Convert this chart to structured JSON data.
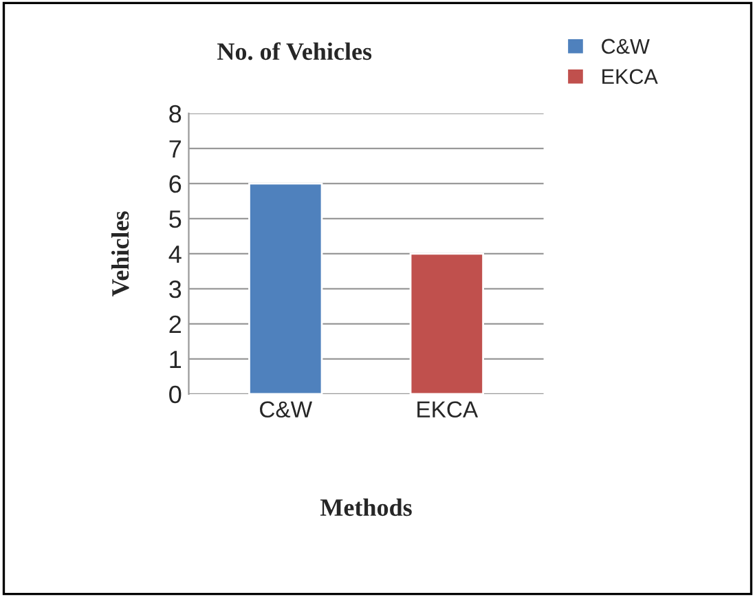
{
  "chart_data": {
    "type": "bar",
    "title": "No. of Vehicles",
    "xlabel": "Methods",
    "ylabel": "Vehicles",
    "categories": [
      "C&W",
      "EKCA"
    ],
    "series": [
      {
        "name": "C&W",
        "color": "#4f81bd",
        "values": [
          6,
          null
        ]
      },
      {
        "name": "EKCA",
        "color": "#c0504d",
        "values": [
          null,
          4
        ]
      }
    ],
    "ylim": [
      0,
      8
    ],
    "yticks": [
      0,
      1,
      2,
      3,
      4,
      5,
      6,
      7,
      8
    ],
    "grid": "y",
    "legend": "top right"
  }
}
